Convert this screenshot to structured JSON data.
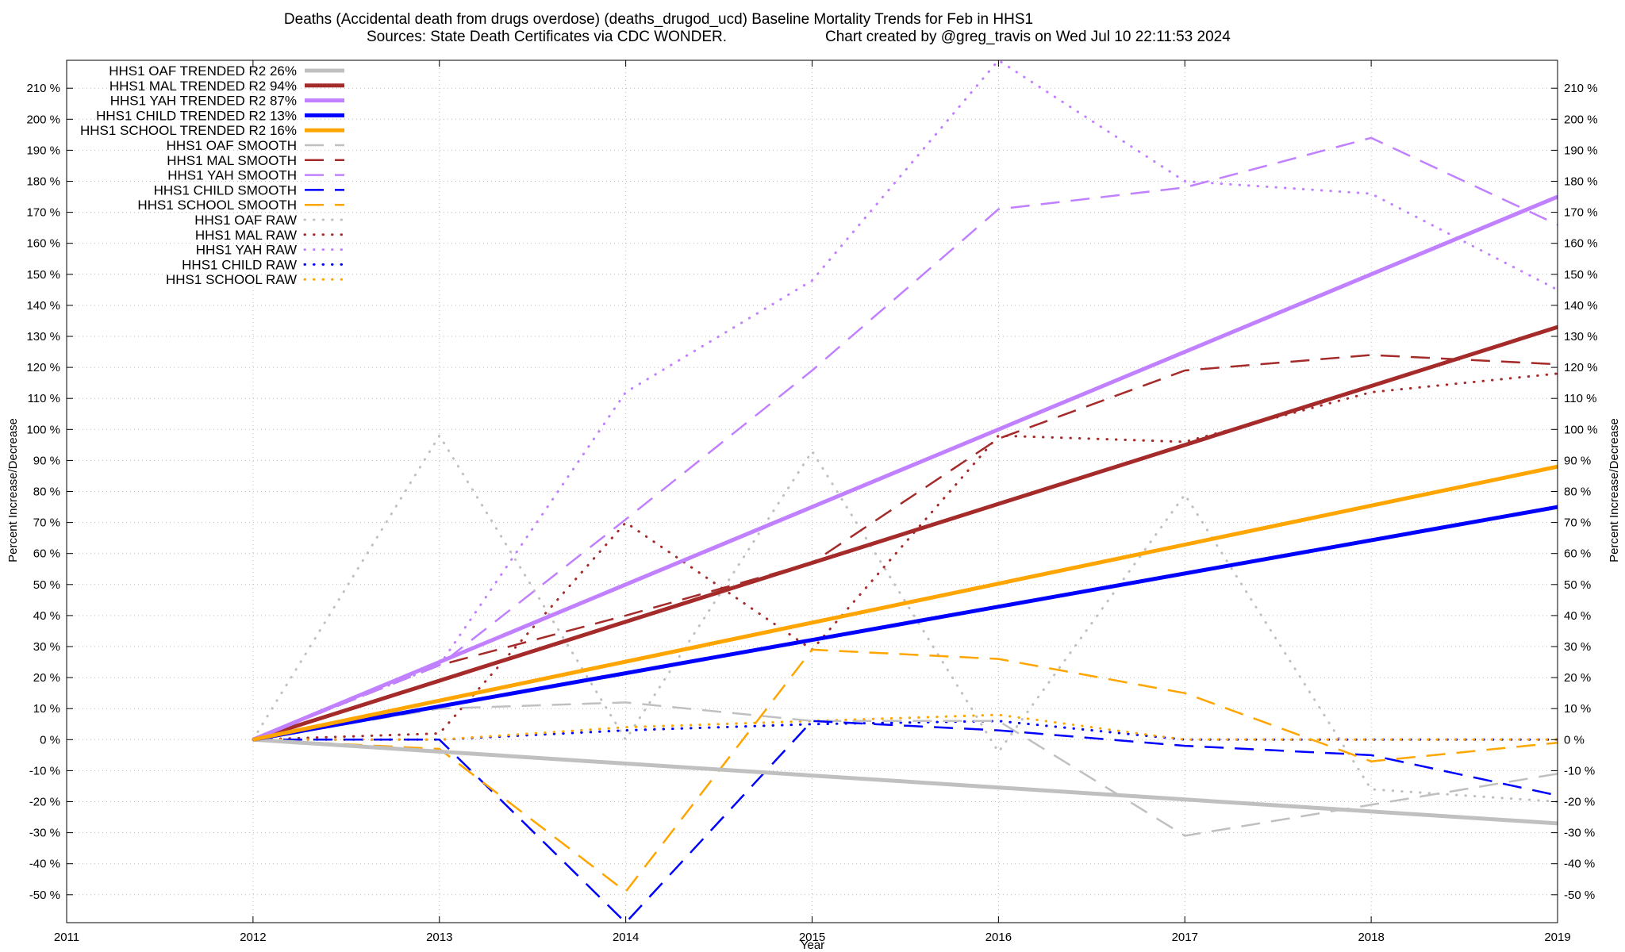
{
  "chart_data": {
    "type": "line",
    "title_line1": "Deaths (Accidental death from drugs overdose) (deaths_drugod_ucd)  Baseline Mortality Trends for Feb in HHS1",
    "title_line2_left": "Sources: State Death Certificates via CDC WONDER.",
    "title_line2_right": "Chart created by @greg_travis on Wed Jul 10 22:11:53 2024",
    "xlabel": "Year",
    "ylabel": "Percent Increase/Decrease",
    "xlim": [
      2011,
      2019
    ],
    "ylim": [
      -59,
      219
    ],
    "x_ticks": [
      2011,
      2012,
      2013,
      2014,
      2015,
      2016,
      2017,
      2018,
      2019
    ],
    "x_tick_labels": [
      "2011",
      "2012",
      "2013",
      "2014",
      "2015",
      "2016",
      "2017",
      "2018",
      "2019"
    ],
    "y_ticks": [
      -50,
      -40,
      -30,
      -20,
      -10,
      0,
      10,
      20,
      30,
      40,
      50,
      60,
      70,
      80,
      90,
      100,
      110,
      120,
      130,
      140,
      150,
      160,
      170,
      180,
      190,
      200,
      210
    ],
    "y_tick_labels": [
      "-50 %",
      "-40 %",
      "-30 %",
      "-20 %",
      "-10 %",
      "0 %",
      "10 %",
      "20 %",
      "30 %",
      "40 %",
      "50 %",
      "60 %",
      "70 %",
      "80 %",
      "90 %",
      "100 %",
      "110 %",
      "120 %",
      "130 %",
      "140 %",
      "150 %",
      "160 %",
      "170 %",
      "180 %",
      "190 %",
      "200 %",
      "210 %"
    ],
    "grid": true,
    "legend_position": "top-left",
    "series": [
      {
        "name": "HHS1 OAF TRENDED R2  26%",
        "color": "#c0c0c0",
        "style": "solid",
        "x": [
          2012,
          2019
        ],
        "values": [
          0,
          -27
        ]
      },
      {
        "name": "HHS1 MAL TRENDED R2  94%",
        "color": "#a52a2a",
        "style": "solid",
        "x": [
          2012,
          2019
        ],
        "values": [
          0,
          133
        ]
      },
      {
        "name": "HHS1 YAH TRENDED R2  87%",
        "color": "#c080ff",
        "style": "solid",
        "x": [
          2012,
          2019
        ],
        "values": [
          0,
          175
        ]
      },
      {
        "name": "HHS1 CHILD TRENDED R2  13%",
        "color": "#0000ff",
        "style": "solid",
        "x": [
          2012,
          2019
        ],
        "values": [
          0,
          75
        ]
      },
      {
        "name": "HHS1 SCHOOL TRENDED R2  16%",
        "color": "#ffa500",
        "style": "solid",
        "x": [
          2012,
          2019
        ],
        "values": [
          0,
          88
        ]
      },
      {
        "name": "HHS1 OAF SMOOTH",
        "color": "#c0c0c0",
        "style": "dash",
        "x": [
          2012,
          2013,
          2014,
          2015,
          2016,
          2017,
          2018,
          2019
        ],
        "values": [
          0,
          10,
          12,
          6,
          6,
          -31,
          -21,
          -11
        ]
      },
      {
        "name": "HHS1 MAL SMOOTH",
        "color": "#a52a2a",
        "style": "dash",
        "x": [
          2012,
          2013,
          2014,
          2015,
          2016,
          2017,
          2018,
          2019
        ],
        "values": [
          0,
          24,
          40,
          57,
          97,
          119,
          124,
          121
        ]
      },
      {
        "name": "HHS1 YAH SMOOTH",
        "color": "#c080ff",
        "style": "dash",
        "x": [
          2012,
          2013,
          2014,
          2015,
          2016,
          2017,
          2018,
          2019
        ],
        "values": [
          0,
          24,
          71,
          119,
          171,
          178,
          194,
          166
        ]
      },
      {
        "name": "HHS1 CHILD SMOOTH",
        "color": "#0000ff",
        "style": "dash",
        "x": [
          2012,
          2013,
          2014,
          2015,
          2016,
          2017,
          2018,
          2019
        ],
        "values": [
          0,
          0,
          -59,
          6,
          3,
          -2,
          -5,
          -18
        ]
      },
      {
        "name": "HHS1 SCHOOL SMOOTH",
        "color": "#ffa500",
        "style": "dash",
        "x": [
          2012,
          2013,
          2014,
          2015,
          2016,
          2017,
          2018,
          2019
        ],
        "values": [
          0,
          -3,
          -49,
          29,
          26,
          15,
          -7,
          -1
        ]
      },
      {
        "name": "HHS1 OAF RAW",
        "color": "#c0c0c0",
        "style": "dot",
        "x": [
          2012,
          2013,
          2014,
          2015,
          2016,
          2017,
          2018,
          2019
        ],
        "values": [
          0,
          98,
          0,
          93,
          -4,
          79,
          -16,
          -20
        ]
      },
      {
        "name": "HHS1 MAL RAW",
        "color": "#a52a2a",
        "style": "dot",
        "x": [
          2012,
          2013,
          2014,
          2015,
          2016,
          2017,
          2018,
          2019
        ],
        "values": [
          0,
          2,
          70,
          29,
          98,
          96,
          112,
          118
        ]
      },
      {
        "name": "HHS1 YAH RAW",
        "color": "#c080ff",
        "style": "dot",
        "x": [
          2012,
          2013,
          2014,
          2015,
          2016,
          2017,
          2018,
          2019
        ],
        "values": [
          0,
          24,
          112,
          148,
          219,
          180,
          176,
          145
        ]
      },
      {
        "name": "HHS1 CHILD RAW",
        "color": "#0000ff",
        "style": "dot",
        "x": [
          2012,
          2013,
          2014,
          2015,
          2016,
          2017,
          2018,
          2019
        ],
        "values": [
          0,
          0,
          3,
          5,
          6,
          0,
          0,
          0
        ]
      },
      {
        "name": "HHS1 SCHOOL RAW",
        "color": "#ffa500",
        "style": "dot",
        "x": [
          2012,
          2013,
          2014,
          2015,
          2016,
          2017,
          2018,
          2019
        ],
        "values": [
          0,
          0,
          4,
          6,
          8,
          0,
          0,
          0
        ]
      }
    ]
  }
}
